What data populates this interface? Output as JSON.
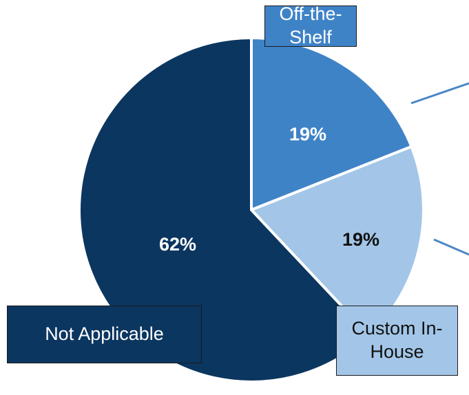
{
  "chart_data": {
    "type": "pie",
    "categories": [
      "Off-the-Shelf",
      "Custom In-House",
      "Not Applicable"
    ],
    "values": [
      19,
      19,
      62
    ],
    "value_labels": [
      "19%",
      "19%",
      "62%"
    ],
    "colors": [
      "#3f83c7",
      "#a3c6e8",
      "#0b3660"
    ]
  }
}
